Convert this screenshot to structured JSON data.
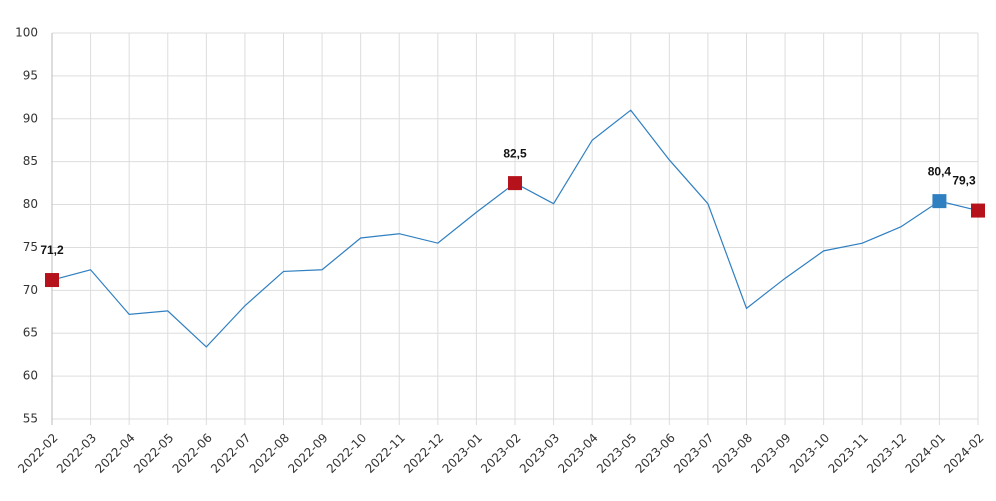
{
  "chart_data": {
    "type": "line",
    "categories": [
      "2022-02",
      "2022-03",
      "2022-04",
      "2022-05",
      "2022-06",
      "2022-07",
      "2022-08",
      "2022-09",
      "2022-10",
      "2022-11",
      "2022-12",
      "2023-01",
      "2023-02",
      "2023-03",
      "2023-04",
      "2023-05",
      "2023-06",
      "2023-07",
      "2023-08",
      "2023-09",
      "2023-10",
      "2023-11",
      "2023-12",
      "2024-01",
      "2024-02"
    ],
    "values": [
      71.2,
      72.4,
      67.2,
      67.6,
      63.4,
      68.2,
      72.2,
      72.4,
      76.1,
      76.6,
      75.5,
      79.1,
      82.5,
      80.1,
      87.5,
      91.0,
      85.2,
      80.1,
      67.9,
      71.4,
      74.6,
      75.5,
      77.4,
      80.4,
      79.3
    ],
    "value_labels": [
      "71,2",
      null,
      null,
      null,
      null,
      null,
      null,
      null,
      null,
      null,
      null,
      null,
      "82,5",
      null,
      null,
      null,
      null,
      null,
      null,
      null,
      null,
      null,
      null,
      "80,4",
      "79,3"
    ],
    "marker_colors": [
      "#b5121b",
      null,
      null,
      null,
      null,
      null,
      null,
      null,
      null,
      null,
      null,
      null,
      "#b5121b",
      null,
      null,
      null,
      null,
      null,
      null,
      null,
      null,
      null,
      null,
      "#2f7fc1",
      "#b5121b"
    ],
    "color": "#2f7fc1",
    "ylim": [
      55,
      100
    ],
    "yticks": [
      55,
      60,
      65,
      70,
      75,
      80,
      85,
      90,
      95,
      100
    ],
    "grid": true
  }
}
